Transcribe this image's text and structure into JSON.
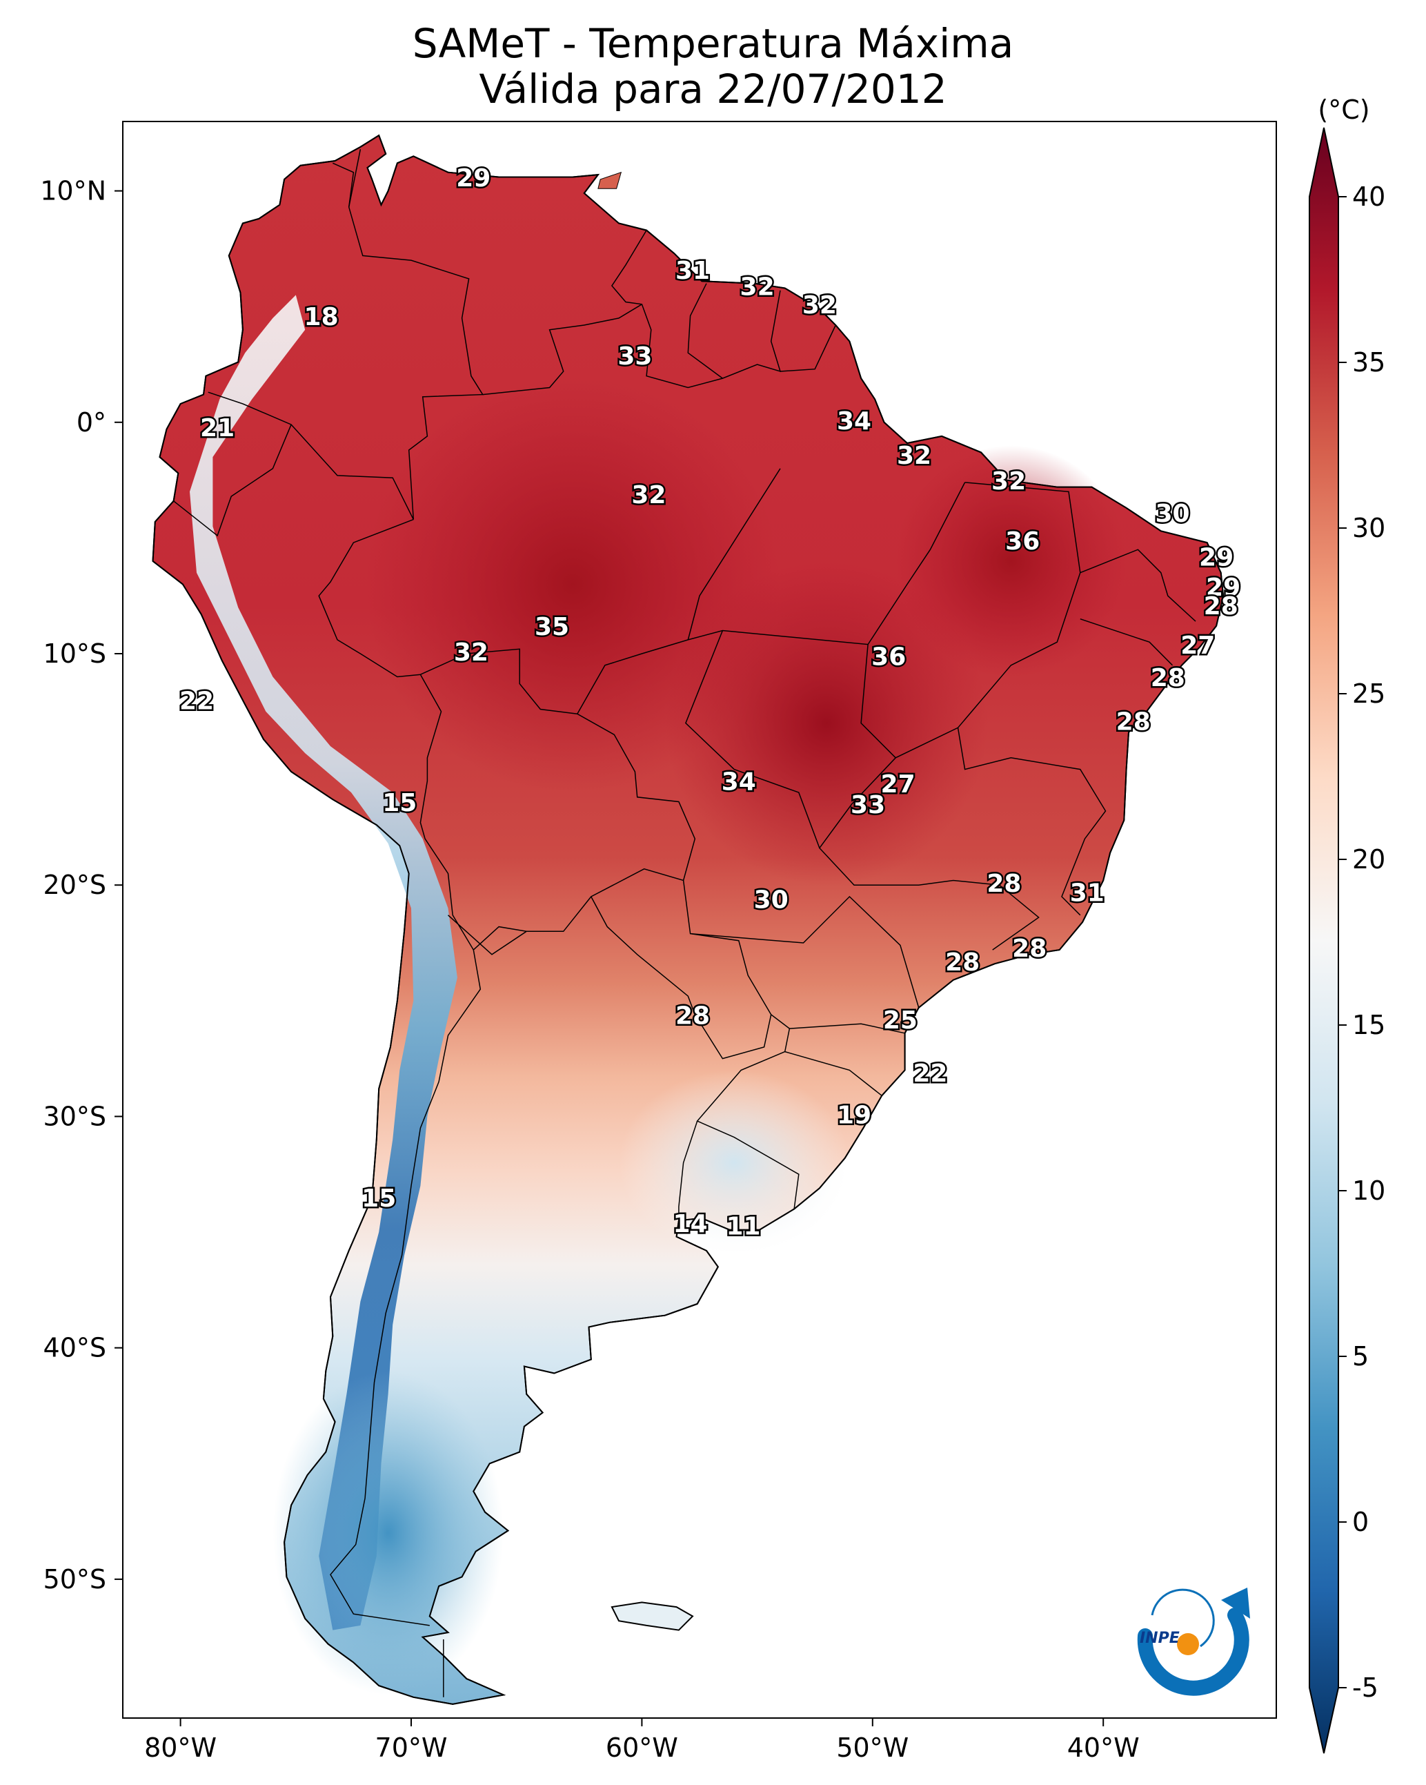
{
  "title": {
    "line1": "SAMeT - Temperatura Máxima",
    "line2": "Válida para 22/07/2012"
  },
  "colorbar": {
    "unit": "(°C)",
    "ticks": [
      "40",
      "35",
      "30",
      "25",
      "20",
      "15",
      "10",
      "5",
      "0",
      "-5"
    ],
    "range": [
      -5,
      40
    ],
    "colormap": "RdBu_r",
    "extend": "both",
    "colors": [
      "#053061",
      "#2166ac",
      "#4393c3",
      "#92c5de",
      "#d1e5f0",
      "#f7f7f7",
      "#fddbc7",
      "#f4a582",
      "#d6604d",
      "#b2182b",
      "#67001f"
    ]
  },
  "axes": {
    "lon_labels": [
      "80°W",
      "70°W",
      "60°W",
      "50°W",
      "40°W"
    ],
    "lat_labels": [
      "10°N",
      "0°",
      "10°S",
      "20°S",
      "30°S",
      "40°S",
      "50°S"
    ]
  },
  "logo": {
    "text": "INPE",
    "icon": "inpe-logo-icon"
  },
  "map": {
    "region": "South America",
    "lon_range": [
      -82.5,
      -32.5
    ],
    "lat_range": [
      -56,
      13
    ],
    "variable": "Temperatura Máxima",
    "contour_labels": [
      {
        "value": "29",
        "lon": -67.3,
        "lat": 10.5
      },
      {
        "value": "31",
        "lon": -57.8,
        "lat": 6.5
      },
      {
        "value": "32",
        "lon": -55.0,
        "lat": 5.8
      },
      {
        "value": "32",
        "lon": -52.3,
        "lat": 5.0
      },
      {
        "value": "18",
        "lon": -73.9,
        "lat": 4.5
      },
      {
        "value": "33",
        "lon": -60.3,
        "lat": 2.8
      },
      {
        "value": "34",
        "lon": -50.8,
        "lat": 0.0
      },
      {
        "value": "21",
        "lon": -78.4,
        "lat": -0.3
      },
      {
        "value": "32",
        "lon": -48.2,
        "lat": -1.5
      },
      {
        "value": "32",
        "lon": -44.1,
        "lat": -2.6
      },
      {
        "value": "32",
        "lon": -59.7,
        "lat": -3.2
      },
      {
        "value": "30",
        "lon": -37.0,
        "lat": -4.0
      },
      {
        "value": "36",
        "lon": -43.5,
        "lat": -5.2
      },
      {
        "value": "29",
        "lon": -35.1,
        "lat": -5.9
      },
      {
        "value": "29",
        "lon": -34.8,
        "lat": -7.2
      },
      {
        "value": "28",
        "lon": -34.9,
        "lat": -8.0
      },
      {
        "value": "35",
        "lon": -63.9,
        "lat": -8.9
      },
      {
        "value": "27",
        "lon": -35.9,
        "lat": -9.7
      },
      {
        "value": "32",
        "lon": -67.4,
        "lat": -10.0
      },
      {
        "value": "36",
        "lon": -49.3,
        "lat": -10.2
      },
      {
        "value": "28",
        "lon": -37.2,
        "lat": -11.1
      },
      {
        "value": "22",
        "lon": -79.3,
        "lat": -12.1
      },
      {
        "value": "28",
        "lon": -38.7,
        "lat": -13.0
      },
      {
        "value": "34",
        "lon": -55.8,
        "lat": -15.6
      },
      {
        "value": "27",
        "lon": -48.9,
        "lat": -15.7
      },
      {
        "value": "15",
        "lon": -70.5,
        "lat": -16.5
      },
      {
        "value": "33",
        "lon": -50.2,
        "lat": -16.6
      },
      {
        "value": "28",
        "lon": -44.3,
        "lat": -20.0
      },
      {
        "value": "31",
        "lon": -40.7,
        "lat": -20.4
      },
      {
        "value": "30",
        "lon": -54.4,
        "lat": -20.7
      },
      {
        "value": "28",
        "lon": -43.2,
        "lat": -22.8
      },
      {
        "value": "28",
        "lon": -46.1,
        "lat": -23.4
      },
      {
        "value": "28",
        "lon": -57.8,
        "lat": -25.7
      },
      {
        "value": "25",
        "lon": -48.8,
        "lat": -25.9
      },
      {
        "value": "22",
        "lon": -47.5,
        "lat": -28.2
      },
      {
        "value": "19",
        "lon": -50.8,
        "lat": -30.0
      },
      {
        "value": "15",
        "lon": -71.4,
        "lat": -33.6
      },
      {
        "value": "14",
        "lon": -57.9,
        "lat": -34.7
      },
      {
        "value": "11",
        "lon": -55.6,
        "lat": -34.8
      }
    ]
  }
}
